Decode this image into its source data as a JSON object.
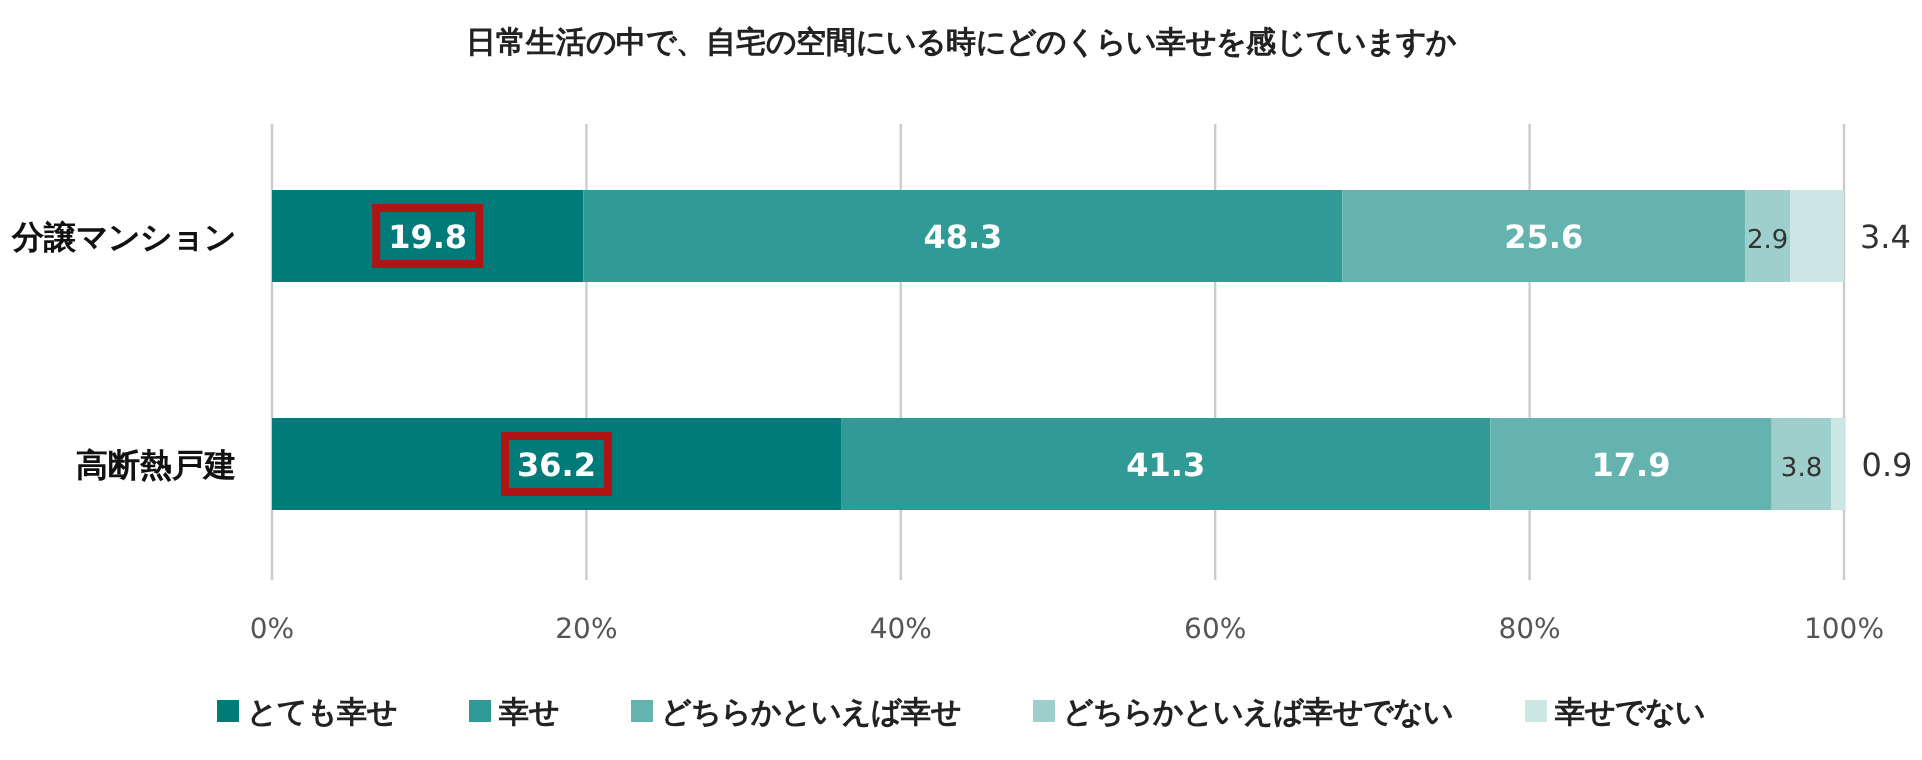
{
  "chart_data": {
    "type": "bar",
    "orientation": "horizontal",
    "stacked": true,
    "title": "日常生活の中で、自宅の空間にいる時にどのくらい幸せを感じていますか",
    "categories": [
      "分譲マンション",
      "高断熱戸建"
    ],
    "series": [
      {
        "name": "とても幸せ",
        "color": "#007b7a",
        "values": [
          19.8,
          36.2
        ]
      },
      {
        "name": "幸せ",
        "color": "#2f9a96",
        "values": [
          48.3,
          41.3
        ]
      },
      {
        "name": "どちらかといえば幸せ",
        "color": "#64b3af",
        "values": [
          25.6,
          17.9
        ]
      },
      {
        "name": "どちらかといえば幸せでない",
        "color": "#9ecfcc",
        "values": [
          2.9,
          3.8
        ]
      },
      {
        "name": "幸せでない",
        "color": "#cce6e4",
        "values": [
          3.4,
          0.9
        ]
      }
    ],
    "xlim": [
      0,
      100
    ],
    "xticks": [
      {
        "value": 0,
        "label": "0%"
      },
      {
        "value": 20,
        "label": "20%"
      },
      {
        "value": 40,
        "label": "40%"
      },
      {
        "value": 60,
        "label": "60%"
      },
      {
        "value": 80,
        "label": "80%"
      },
      {
        "value": 100,
        "label": "100%"
      }
    ],
    "grid": "x",
    "data_labels": true,
    "legend": "bottom"
  }
}
